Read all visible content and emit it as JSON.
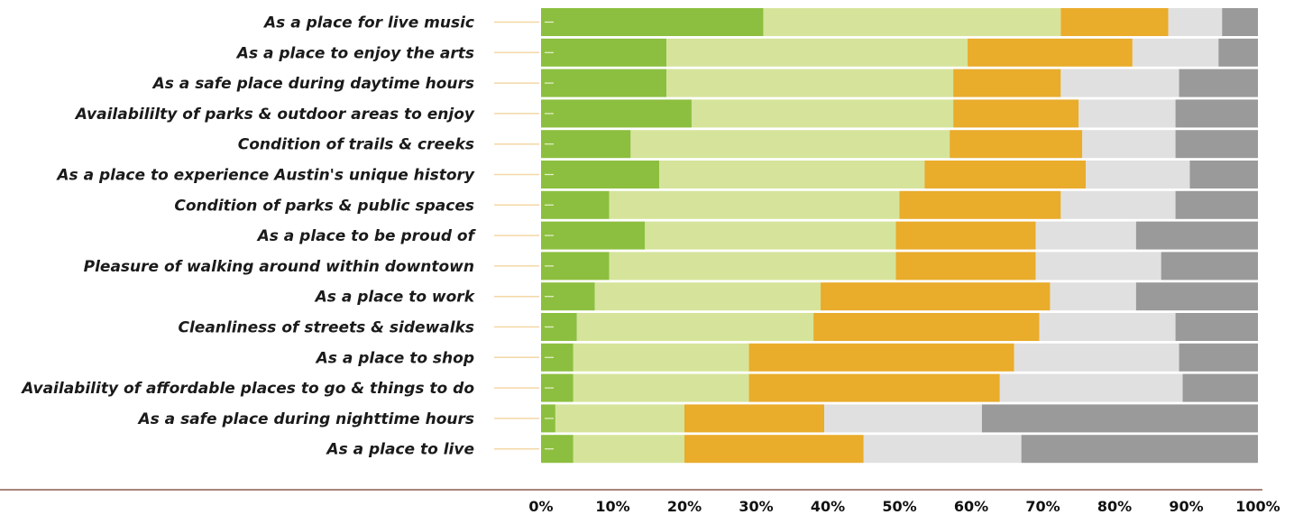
{
  "chart_data": {
    "type": "bar",
    "orientation": "horizontal",
    "stacked": true,
    "categories": [
      "As a place for live music",
      "As a place to enjoy the arts",
      "As a safe place during daytime hours",
      "Availabililty of parks & outdoor areas to enjoy",
      "Condition of trails & creeks",
      "As a place to experience Austin's unique history",
      "Condition of parks & public spaces",
      "As a place to be proud of",
      "Pleasure of walking around within downtown",
      "As a place to work",
      "Cleanliness of streets & sidewalks",
      "As a place to shop",
      "Availability of affordable places to go & things to do",
      "As a safe place during nighttime hours",
      "As a place to live"
    ],
    "series": [
      {
        "color": "#8cbf3f",
        "values": [
          31,
          17.5,
          17.5,
          21,
          12.5,
          16.5,
          9.5,
          14.5,
          9.5,
          7.5,
          5,
          4.5,
          4.5,
          2,
          4.5
        ]
      },
      {
        "color": "#d5e49a",
        "values": [
          41.5,
          42,
          40,
          36.5,
          44.5,
          37,
          40.5,
          35,
          40,
          31.5,
          33,
          24.5,
          24.5,
          18,
          15.5
        ]
      },
      {
        "color": "#e9ac2b",
        "values": [
          15,
          23,
          15,
          17.5,
          18.5,
          22.5,
          22.5,
          19.5,
          19.5,
          32,
          31.5,
          37,
          35,
          19.5,
          25
        ]
      },
      {
        "color": "#e0e0e0",
        "values": [
          7.5,
          12,
          16.5,
          13.5,
          13,
          14.5,
          16,
          14,
          17.5,
          12,
          19,
          23,
          25.5,
          22,
          22
        ]
      },
      {
        "color": "#9a9a9a",
        "values": [
          5,
          5.5,
          11,
          11.5,
          11.5,
          9.5,
          11.5,
          17,
          13.5,
          17,
          11.5,
          11,
          10.5,
          38.5,
          33
        ]
      }
    ],
    "xlim": [
      0,
      100
    ],
    "x_tick_labels": [
      "0%",
      "10%",
      "20%",
      "30%",
      "40%",
      "50%",
      "60%",
      "70%",
      "80%",
      "90%",
      "100%"
    ],
    "title": "",
    "xlabel": "",
    "ylabel": "",
    "grid": false,
    "legend": "none"
  }
}
